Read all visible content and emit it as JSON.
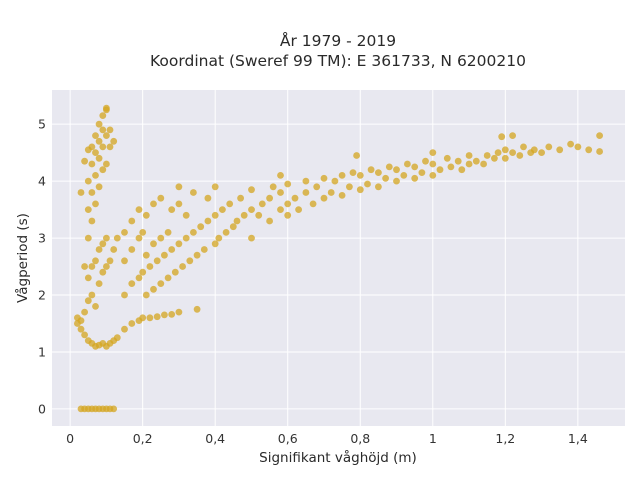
{
  "chart_data": {
    "type": "scatter",
    "title_lines": [
      "År 1979 - 2019",
      "Koordinat (Sweref 99 TM): E 361733, N 6200210"
    ],
    "xlabel": "Signifikant våghöjd (m)",
    "ylabel": "Vågperiod (s)",
    "xlim": [
      -0.05,
      1.53
    ],
    "ylim": [
      -0.3,
      5.6
    ],
    "x_ticks": [
      0,
      0.2,
      0.4,
      0.6,
      0.8,
      1,
      1.2,
      1.4
    ],
    "x_tick_labels": [
      "0",
      "0,2",
      "0,4",
      "0,6",
      "0,8",
      "1",
      "1,2",
      "1,4"
    ],
    "y_ticks": [
      0,
      1,
      2,
      3,
      4,
      5
    ],
    "y_tick_labels": [
      "0",
      "1",
      "2",
      "3",
      "4",
      "5"
    ],
    "grid": true,
    "marker_color": "#D4A520",
    "plot_background": "#E8E8F0",
    "series": [
      {
        "points": [
          [
            0.03,
            0
          ],
          [
            0.04,
            0
          ],
          [
            0.05,
            0
          ],
          [
            0.06,
            0
          ],
          [
            0.07,
            0
          ],
          [
            0.08,
            0
          ],
          [
            0.09,
            0
          ],
          [
            0.1,
            0
          ],
          [
            0.11,
            0
          ],
          [
            0.12,
            0
          ],
          [
            0.02,
            1.5
          ],
          [
            0.02,
            1.6
          ],
          [
            0.03,
            1.4
          ],
          [
            0.03,
            1.55
          ],
          [
            0.04,
            1.3
          ],
          [
            0.04,
            1.7
          ],
          [
            0.05,
            1.2
          ],
          [
            0.05,
            1.9
          ],
          [
            0.05,
            2.3
          ],
          [
            0.06,
            1.15
          ],
          [
            0.06,
            2.0
          ],
          [
            0.06,
            2.5
          ],
          [
            0.07,
            1.1
          ],
          [
            0.07,
            1.8
          ],
          [
            0.07,
            2.6
          ],
          [
            0.08,
            1.12
          ],
          [
            0.08,
            2.2
          ],
          [
            0.08,
            2.8
          ],
          [
            0.09,
            1.15
          ],
          [
            0.09,
            2.4
          ],
          [
            0.09,
            2.9
          ],
          [
            0.1,
            1.1
          ],
          [
            0.1,
            2.5
          ],
          [
            0.1,
            3.0
          ],
          [
            0.11,
            1.15
          ],
          [
            0.11,
            2.6
          ],
          [
            0.12,
            1.2
          ],
          [
            0.12,
            2.8
          ],
          [
            0.13,
            1.25
          ],
          [
            0.13,
            3.0
          ],
          [
            0.04,
            2.5
          ],
          [
            0.05,
            3.0
          ],
          [
            0.05,
            3.5
          ],
          [
            0.05,
            4.0
          ],
          [
            0.06,
            3.3
          ],
          [
            0.06,
            3.8
          ],
          [
            0.06,
            4.3
          ],
          [
            0.06,
            4.6
          ],
          [
            0.07,
            3.6
          ],
          [
            0.07,
            4.1
          ],
          [
            0.07,
            4.5
          ],
          [
            0.07,
            4.8
          ],
          [
            0.08,
            3.9
          ],
          [
            0.08,
            4.4
          ],
          [
            0.08,
            4.7
          ],
          [
            0.08,
            5.0
          ],
          [
            0.09,
            4.2
          ],
          [
            0.09,
            4.6
          ],
          [
            0.09,
            4.9
          ],
          [
            0.09,
            5.15
          ],
          [
            0.1,
            4.3
          ],
          [
            0.1,
            4.8
          ],
          [
            0.1,
            5.25
          ],
          [
            0.1,
            5.28
          ],
          [
            0.11,
            4.6
          ],
          [
            0.11,
            4.9
          ],
          [
            0.12,
            4.7
          ],
          [
            0.03,
            3.8
          ],
          [
            0.04,
            4.35
          ],
          [
            0.05,
            4.55
          ],
          [
            0.15,
            1.4
          ],
          [
            0.15,
            2.0
          ],
          [
            0.15,
            2.6
          ],
          [
            0.15,
            3.1
          ],
          [
            0.17,
            1.5
          ],
          [
            0.17,
            2.2
          ],
          [
            0.17,
            2.8
          ],
          [
            0.17,
            3.3
          ],
          [
            0.19,
            1.55
          ],
          [
            0.19,
            2.3
          ],
          [
            0.19,
            3.0
          ],
          [
            0.19,
            3.5
          ],
          [
            0.2,
            1.6
          ],
          [
            0.2,
            2.4
          ],
          [
            0.2,
            3.1
          ],
          [
            0.21,
            2.0
          ],
          [
            0.21,
            2.7
          ],
          [
            0.21,
            3.4
          ],
          [
            0.22,
            1.6
          ],
          [
            0.22,
            2.5
          ],
          [
            0.23,
            2.1
          ],
          [
            0.23,
            2.9
          ],
          [
            0.23,
            3.6
          ],
          [
            0.24,
            1.62
          ],
          [
            0.24,
            2.6
          ],
          [
            0.25,
            2.2
          ],
          [
            0.25,
            3.0
          ],
          [
            0.25,
            3.7
          ],
          [
            0.26,
            1.65
          ],
          [
            0.26,
            2.7
          ],
          [
            0.27,
            2.3
          ],
          [
            0.27,
            3.1
          ],
          [
            0.28,
            1.66
          ],
          [
            0.28,
            2.8
          ],
          [
            0.28,
            3.5
          ],
          [
            0.29,
            2.4
          ],
          [
            0.3,
            1.7
          ],
          [
            0.3,
            2.9
          ],
          [
            0.3,
            3.6
          ],
          [
            0.3,
            3.9
          ],
          [
            0.31,
            2.5
          ],
          [
            0.32,
            3.0
          ],
          [
            0.32,
            3.4
          ],
          [
            0.33,
            2.6
          ],
          [
            0.34,
            3.1
          ],
          [
            0.34,
            3.8
          ],
          [
            0.35,
            1.75
          ],
          [
            0.35,
            2.7
          ],
          [
            0.36,
            3.2
          ],
          [
            0.37,
            2.8
          ],
          [
            0.38,
            3.3
          ],
          [
            0.38,
            3.7
          ],
          [
            0.4,
            2.9
          ],
          [
            0.4,
            3.4
          ],
          [
            0.4,
            3.9
          ],
          [
            0.41,
            3.0
          ],
          [
            0.42,
            3.5
          ],
          [
            0.43,
            3.1
          ],
          [
            0.44,
            3.6
          ],
          [
            0.45,
            3.2
          ],
          [
            0.46,
            3.3
          ],
          [
            0.47,
            3.7
          ],
          [
            0.48,
            3.4
          ],
          [
            0.5,
            3.0
          ],
          [
            0.5,
            3.5
          ],
          [
            0.5,
            3.85
          ],
          [
            0.52,
            3.4
          ],
          [
            0.53,
            3.6
          ],
          [
            0.55,
            3.3
          ],
          [
            0.55,
            3.7
          ],
          [
            0.56,
            3.9
          ],
          [
            0.58,
            3.5
          ],
          [
            0.58,
            3.8
          ],
          [
            0.6,
            3.4
          ],
          [
            0.6,
            3.6
          ],
          [
            0.6,
            3.95
          ],
          [
            0.62,
            3.7
          ],
          [
            0.63,
            3.5
          ],
          [
            0.65,
            3.8
          ],
          [
            0.65,
            4.0
          ],
          [
            0.67,
            3.6
          ],
          [
            0.68,
            3.9
          ],
          [
            0.7,
            3.7
          ],
          [
            0.7,
            4.05
          ],
          [
            0.72,
            3.8
          ],
          [
            0.73,
            4.0
          ],
          [
            0.75,
            3.75
          ],
          [
            0.75,
            4.1
          ],
          [
            0.77,
            3.9
          ],
          [
            0.78,
            4.15
          ],
          [
            0.8,
            3.85
          ],
          [
            0.8,
            4.1
          ],
          [
            0.82,
            3.95
          ],
          [
            0.83,
            4.2
          ],
          [
            0.85,
            3.9
          ],
          [
            0.85,
            4.15
          ],
          [
            0.87,
            4.05
          ],
          [
            0.88,
            4.25
          ],
          [
            0.9,
            4.0
          ],
          [
            0.9,
            4.2
          ],
          [
            0.92,
            4.1
          ],
          [
            0.93,
            4.3
          ],
          [
            0.95,
            4.05
          ],
          [
            0.95,
            4.25
          ],
          [
            0.97,
            4.15
          ],
          [
            0.98,
            4.35
          ],
          [
            1.0,
            4.1
          ],
          [
            1.0,
            4.3
          ],
          [
            1.02,
            4.2
          ],
          [
            1.04,
            4.4
          ],
          [
            1.05,
            4.25
          ],
          [
            1.07,
            4.35
          ],
          [
            1.08,
            4.2
          ],
          [
            1.1,
            4.3
          ],
          [
            1.1,
            4.45
          ],
          [
            1.12,
            4.35
          ],
          [
            1.14,
            4.3
          ],
          [
            1.15,
            4.45
          ],
          [
            1.17,
            4.4
          ],
          [
            1.18,
            4.5
          ],
          [
            1.2,
            4.4
          ],
          [
            1.2,
            4.55
          ],
          [
            1.22,
            4.5
          ],
          [
            1.24,
            4.45
          ],
          [
            1.25,
            4.6
          ],
          [
            1.27,
            4.5
          ],
          [
            1.28,
            4.55
          ],
          [
            1.3,
            4.5
          ],
          [
            1.32,
            4.6
          ],
          [
            1.35,
            4.55
          ],
          [
            1.38,
            4.65
          ],
          [
            1.4,
            4.6
          ],
          [
            1.43,
            4.55
          ],
          [
            1.46,
            4.8
          ],
          [
            1.46,
            4.52
          ],
          [
            1.22,
            4.8
          ],
          [
            1.19,
            4.78
          ],
          [
            1.0,
            4.5
          ],
          [
            0.79,
            4.45
          ],
          [
            0.58,
            4.1
          ]
        ]
      }
    ]
  }
}
